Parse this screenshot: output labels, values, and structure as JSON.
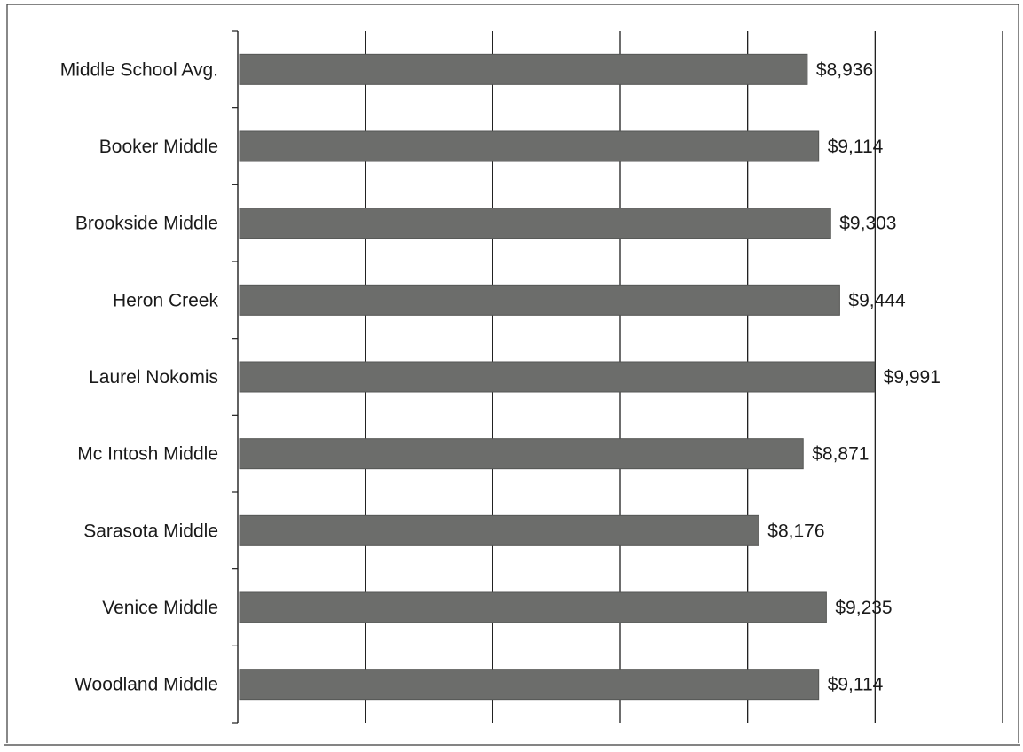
{
  "chart_data": {
    "type": "bar",
    "orientation": "horizontal",
    "categories": [
      "Middle School Avg.",
      "Booker Middle",
      "Brookside Middle",
      "Heron Creek",
      "Laurel Nokomis",
      "Mc Intosh Middle",
      "Sarasota Middle",
      "Venice Middle",
      "Woodland Middle"
    ],
    "values": [
      8936,
      9114,
      9303,
      9444,
      9991,
      8871,
      8176,
      9235,
      9114
    ],
    "value_labels": [
      "$8,936",
      "$9,114",
      "$9,303",
      "$9,444",
      "$9,991",
      "$8,871",
      "$8,176",
      "$9,235",
      "$9,114"
    ],
    "title": "",
    "xlabel": "",
    "ylabel": "",
    "xlim": [
      0,
      12000
    ],
    "grid": true,
    "legend": "none",
    "colors": {
      "bar": "#6c6d6b",
      "grid": "#1e1e1e",
      "text": "#1a1a1a"
    }
  }
}
